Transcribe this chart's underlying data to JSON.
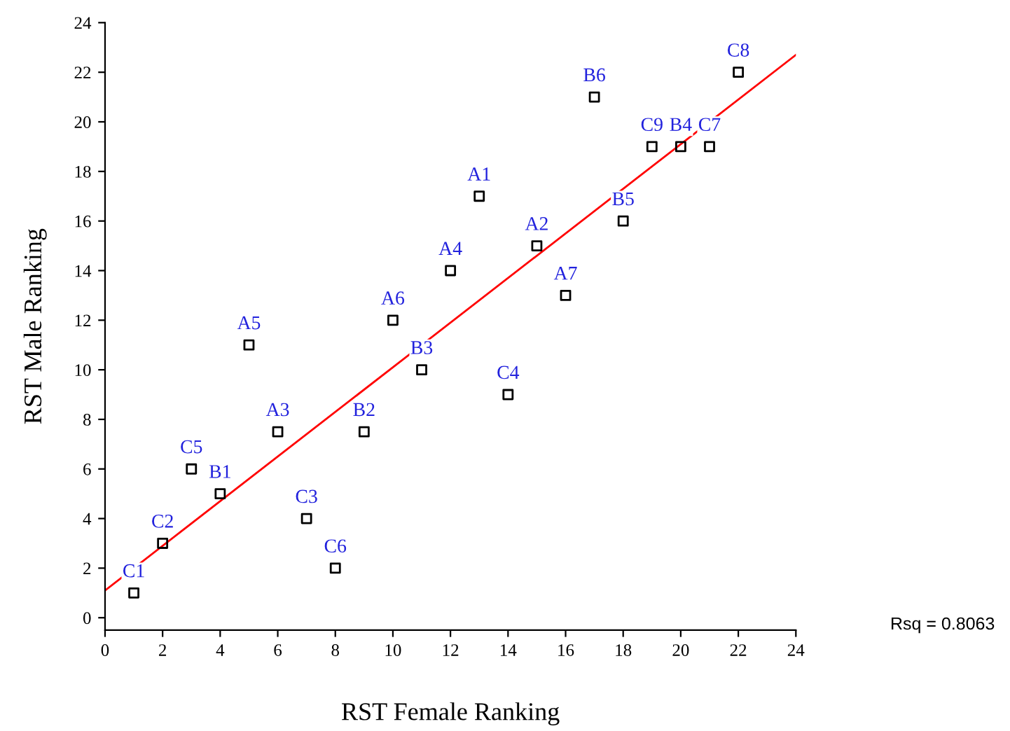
{
  "chart_data": {
    "type": "scatter",
    "xlabel": "RST Female Ranking",
    "ylabel": "RST Male Ranking",
    "x": [
      1,
      2,
      3,
      4,
      5,
      6,
      7,
      8,
      9,
      10,
      11,
      12,
      13,
      14,
      15,
      16,
      17,
      18,
      19,
      20,
      21,
      22
    ],
    "series": [
      {
        "color": "#000000",
        "marker": "square",
        "values": [
          1,
          3,
          6,
          5,
          11,
          7.5,
          4,
          2,
          7.5,
          12,
          10,
          14,
          17,
          9,
          15,
          13,
          21,
          16,
          19,
          19,
          19,
          22
        ]
      },
      {
        "type": "line",
        "color": "#ff0000",
        "x": [
          0,
          24
        ],
        "values": [
          1.1,
          22.7
        ]
      }
    ],
    "annotations": [
      {
        "text": "C1",
        "x": 1,
        "y": 1
      },
      {
        "text": "C2",
        "x": 2,
        "y": 3
      },
      {
        "text": "C5",
        "x": 3,
        "y": 6
      },
      {
        "text": "B1",
        "x": 4,
        "y": 5
      },
      {
        "text": "A5",
        "x": 5,
        "y": 11
      },
      {
        "text": "A3",
        "x": 6,
        "y": 7.5
      },
      {
        "text": "C3",
        "x": 7,
        "y": 4
      },
      {
        "text": "C6",
        "x": 8,
        "y": 2
      },
      {
        "text": "B2",
        "x": 9,
        "y": 7.5
      },
      {
        "text": "A6",
        "x": 10,
        "y": 12
      },
      {
        "text": "B3",
        "x": 11,
        "y": 10
      },
      {
        "text": "A4",
        "x": 12,
        "y": 14
      },
      {
        "text": "A1",
        "x": 13,
        "y": 17
      },
      {
        "text": "C4",
        "x": 14,
        "y": 9
      },
      {
        "text": "A2",
        "x": 15,
        "y": 15
      },
      {
        "text": "A7",
        "x": 16,
        "y": 13
      },
      {
        "text": "B6",
        "x": 17,
        "y": 21
      },
      {
        "text": "B5",
        "x": 18,
        "y": 16
      },
      {
        "text": "C9",
        "x": 19,
        "y": 19
      },
      {
        "text": "B4",
        "x": 20,
        "y": 19
      },
      {
        "text": "C7",
        "x": 21,
        "y": 19
      },
      {
        "text": "C8",
        "x": 22,
        "y": 22
      },
      "Rsq = 0.8063"
    ],
    "xlim": [
      0,
      24
    ],
    "ylim": [
      -0.5,
      24
    ],
    "xticks": [
      0,
      2,
      4,
      6,
      8,
      10,
      12,
      14,
      16,
      18,
      20,
      22,
      24
    ],
    "yticks": [
      0,
      2,
      4,
      6,
      8,
      10,
      12,
      14,
      16,
      18,
      20,
      22,
      24
    ],
    "grid": false,
    "legend": false
  }
}
